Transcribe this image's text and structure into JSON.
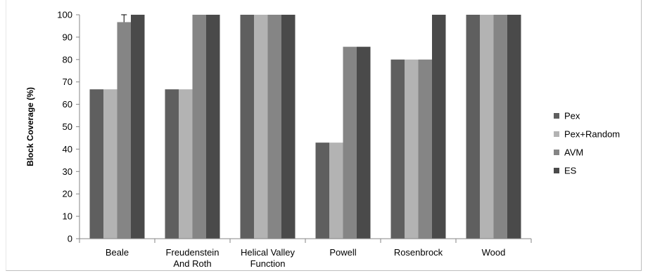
{
  "chart_data": {
    "type": "bar",
    "title": "",
    "xlabel": "",
    "ylabel": "Block Coverage (%)",
    "ylim": [
      0,
      100
    ],
    "yticks": [
      0,
      10,
      20,
      30,
      40,
      50,
      60,
      70,
      80,
      90,
      100
    ],
    "grid": false,
    "legend_position": "right",
    "categories": [
      [
        "Beale"
      ],
      [
        "Freudenstein",
        "And Roth"
      ],
      [
        "Helical Valley",
        "Function"
      ],
      [
        "Powell"
      ],
      [
        "Rosenbrock"
      ],
      [
        "Wood"
      ]
    ],
    "series": [
      {
        "name": "Pex",
        "color": "#5f5f5f",
        "values": [
          66.7,
          66.7,
          100,
          42.9,
          80,
          100
        ]
      },
      {
        "name": "Pex+Random",
        "color": "#b3b3b3",
        "values": [
          66.7,
          66.7,
          100,
          42.9,
          80,
          100
        ]
      },
      {
        "name": "AVM",
        "color": "#858585",
        "values": [
          96.7,
          100,
          100,
          85.7,
          80,
          100
        ]
      },
      {
        "name": "ES",
        "color": "#4a4a4a",
        "values": [
          100,
          100,
          100,
          85.7,
          100,
          100
        ]
      }
    ],
    "error_bars": [
      {
        "series": "AVM",
        "category": "Beale",
        "upper": 100
      }
    ]
  }
}
